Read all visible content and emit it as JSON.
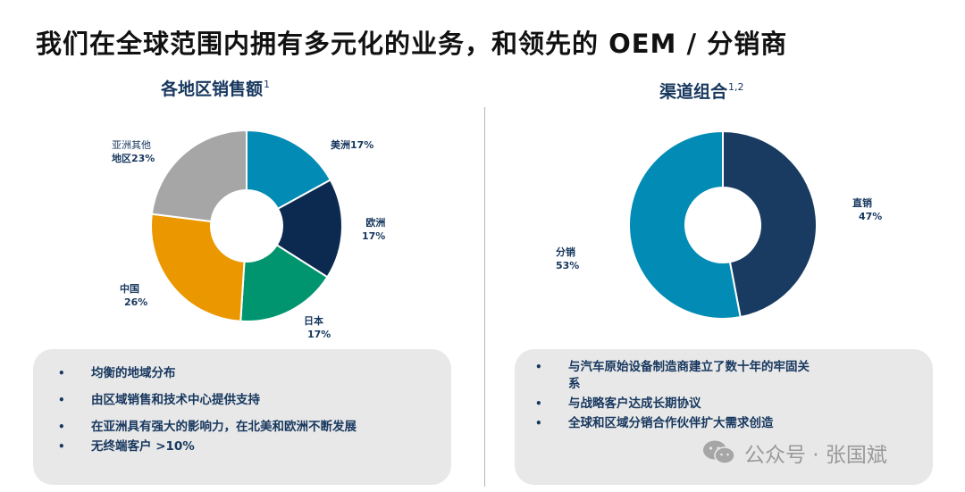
{
  "title": "我们在全球范围内拥有多元化的业务，和领先的 OEM / 分销商",
  "left_panel": {
    "subtitle": "各地区销售额",
    "subtitle_footnote": "1",
    "bullets": [
      "均衡的地域分布",
      "由区域销售和技术中心提供支持",
      "在亚洲具有强大的影响力，在北美和欧洲不断发展",
      "无终端客户 >10%"
    ]
  },
  "right_panel": {
    "subtitle": "渠道组合",
    "subtitle_footnote": "1,2",
    "bullets": [
      "与汽车原始设备制造商建立了数十年的牢固关系",
      "与战略客户达成长期协议",
      "全球和区域分销合作伙伴扩大需求创造"
    ]
  },
  "watermark": {
    "icon": "wechat-icon",
    "text": "公众号 · 张国斌"
  },
  "chart_data": [
    {
      "type": "pie",
      "subtype": "donut",
      "title": "各地区销售额",
      "categories": [
        "美洲",
        "欧洲",
        "日本",
        "中国",
        "亚洲其他地区"
      ],
      "values": [
        17,
        17,
        17,
        26,
        23
      ],
      "unit": "%",
      "colors": [
        "#028bb5",
        "#0c2a4f",
        "#00956e",
        "#eb9800",
        "#a6a6a6"
      ],
      "labels": [
        {
          "line1": "美洲17%",
          "line2": ""
        },
        {
          "line1": "欧洲",
          "line2": "17%"
        },
        {
          "line1": "日本",
          "line2": "17%"
        },
        {
          "line1": "中国",
          "line2": "26%"
        },
        {
          "line1": "亚洲其他",
          "line2": "地区23%"
        }
      ]
    },
    {
      "type": "pie",
      "subtype": "donut",
      "title": "渠道组合",
      "categories": [
        "直销",
        "分销"
      ],
      "values": [
        47,
        53
      ],
      "unit": "%",
      "colors": [
        "#193b61",
        "#028bb5"
      ],
      "labels": [
        {
          "line1": "直销",
          "line2": "47%"
        },
        {
          "line1": "分销",
          "line2": "53%"
        }
      ]
    }
  ]
}
